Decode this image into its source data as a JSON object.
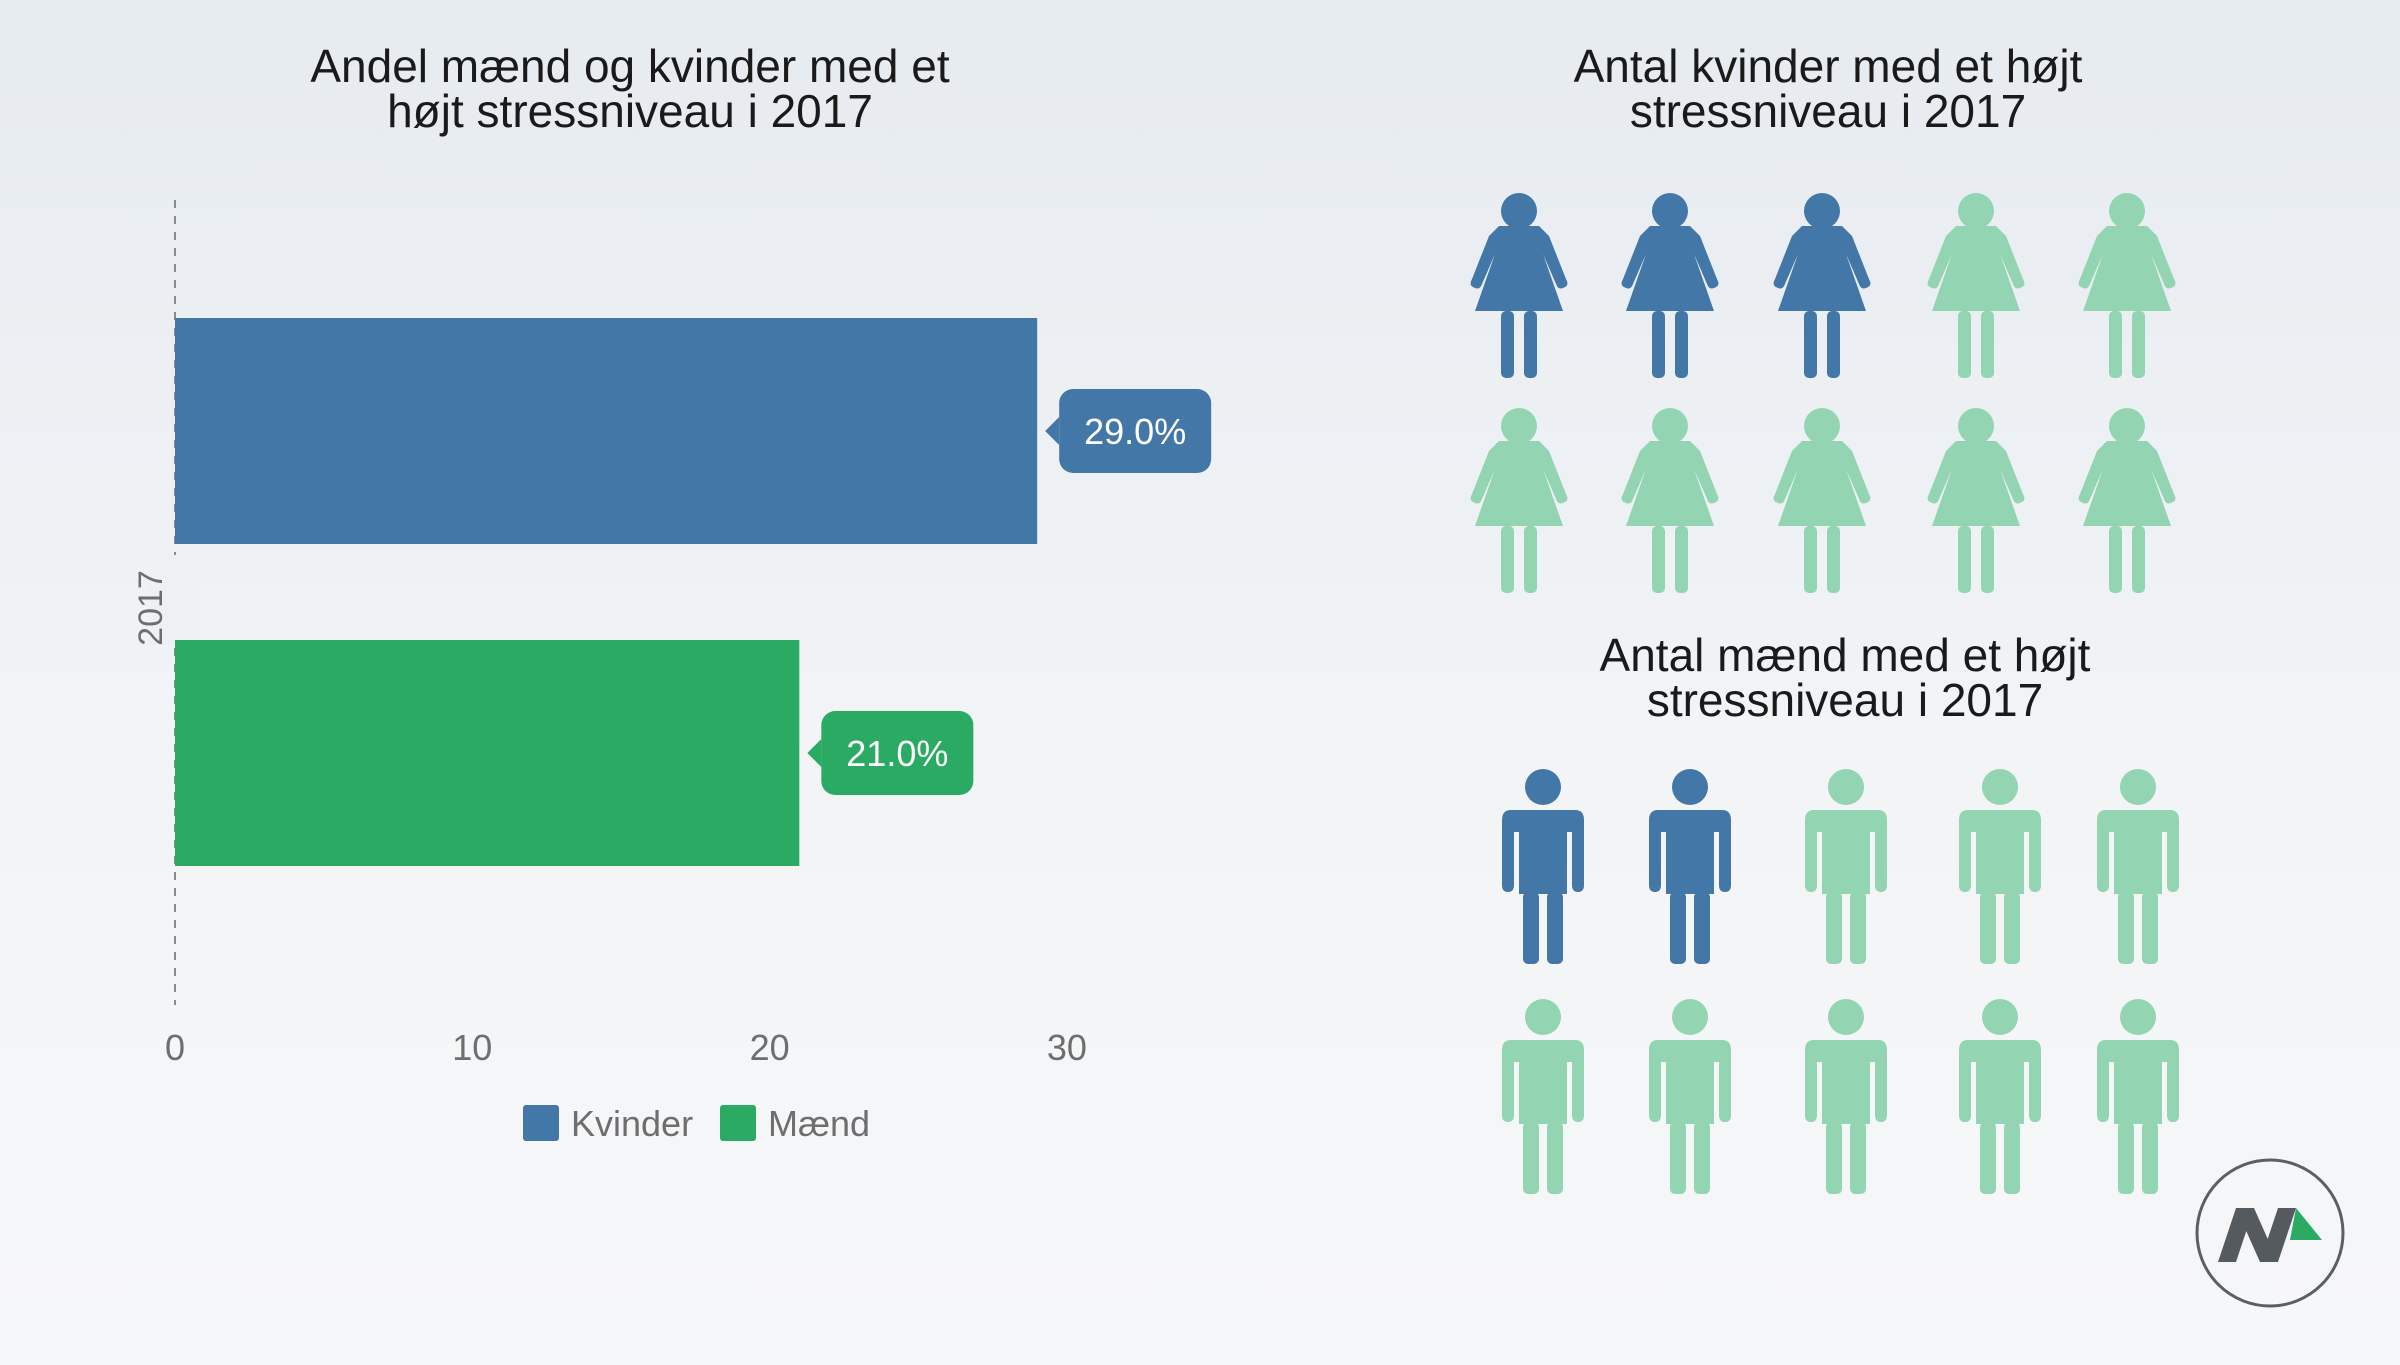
{
  "colors": {
    "kvinder": "#4377a7",
    "maend": "#2aaa63",
    "icon_highlight": "#4377a7",
    "icon_muted": "#93d4b3",
    "axis": "#8a8a8a",
    "logo_ring": "#5b5f63",
    "logo_dark": "#555a5f",
    "logo_accent": "#2aaa63"
  },
  "chart_data": {
    "type": "bar",
    "orientation": "horizontal",
    "title": "Andel mænd og kvinder med et højt stressniveau i 2017",
    "title_lines": [
      "Andel mænd og kvinder med et",
      "højt stressniveau i 2017"
    ],
    "categories": [
      "2017"
    ],
    "series": [
      {
        "name": "Kvinder",
        "values": [
          29.0
        ],
        "label": "29.0%",
        "color": "#4377a7"
      },
      {
        "name": "Mænd",
        "values": [
          21.0
        ],
        "label": "21.0%",
        "color": "#2aaa63"
      }
    ],
    "xticks": [
      "0",
      "10",
      "20",
      "30"
    ],
    "xtick_values": [
      0,
      10,
      20,
      30
    ],
    "xlim": [
      0,
      30
    ],
    "grid": false,
    "legend": {
      "position": "bottom",
      "items": [
        "Kvinder",
        "Mænd"
      ]
    }
  },
  "pictograms": {
    "women": {
      "title_lines": [
        "Antal kvinder med et højt",
        "stressniveau i 2017"
      ],
      "highlighted": 3,
      "total": 10
    },
    "men": {
      "title_lines": [
        "Antal mænd med et højt",
        "stressniveau i 2017"
      ],
      "highlighted": 2,
      "total": 10
    }
  },
  "logo": {
    "icon": "brand-logo-icon"
  }
}
